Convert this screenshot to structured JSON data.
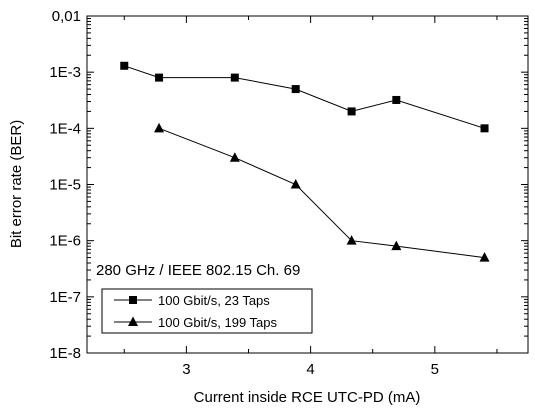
{
  "chart_data": {
    "type": "line",
    "title": "",
    "xlabel": "Current inside RCE UTC-PD (mA)",
    "ylabel": "Bit error rate (BER)",
    "xlim": [
      2.2,
      5.75
    ],
    "ylim": [
      1e-08,
      0.01
    ],
    "yscale": "log",
    "x_ticks": [
      3,
      4,
      5
    ],
    "x_tick_labels": [
      "3",
      "4",
      "5"
    ],
    "y_ticks": [
      0.01,
      0.001,
      0.0001,
      1e-05,
      1e-06,
      1e-07,
      1e-08
    ],
    "y_tick_labels": [
      "0,01",
      "1E-3",
      "1E-4",
      "1E-5",
      "1E-6",
      "1E-7",
      "1E-8"
    ],
    "grid": false,
    "annotation": "280 GHz / IEEE 802.15 Ch. 69",
    "legend_position": "bottom-left",
    "series": [
      {
        "name": "100 Gbit/s, 23 Taps",
        "marker": "square",
        "color": "#000000",
        "x": [
          2.5,
          2.78,
          3.39,
          3.88,
          4.33,
          4.69,
          5.4
        ],
        "y": [
          0.0013,
          0.0008,
          0.0008,
          0.0005,
          0.0002,
          0.00032,
          0.0001
        ]
      },
      {
        "name": "100 Gbit/s, 199 Taps",
        "marker": "triangle",
        "color": "#000000",
        "x": [
          2.78,
          3.39,
          3.88,
          4.33,
          4.69,
          5.4
        ],
        "y": [
          0.0001,
          3e-05,
          1e-05,
          1e-06,
          8e-07,
          5e-07
        ]
      }
    ]
  }
}
